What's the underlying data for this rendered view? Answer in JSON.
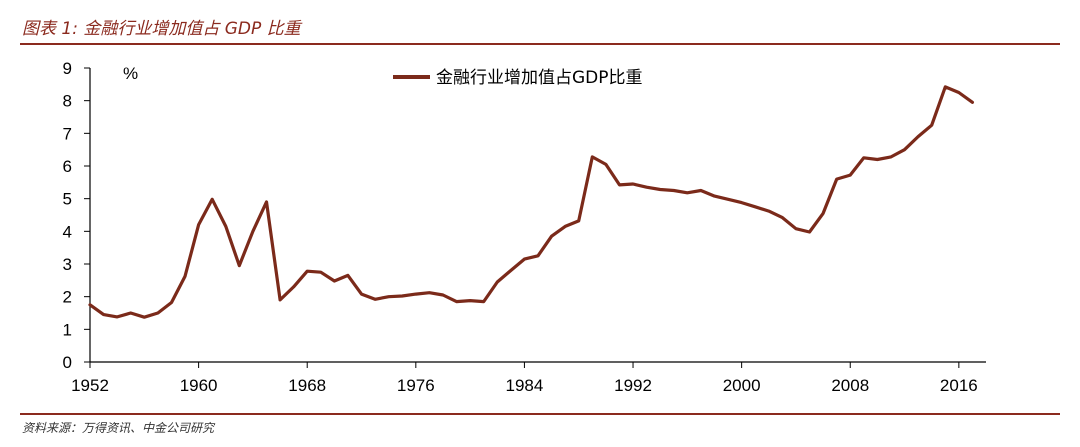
{
  "figure": {
    "title": "图表 1: 金融行业增加值占 GDP 比重",
    "source": "资料来源：万得资讯、中金公司研究"
  },
  "colors": {
    "accent": "#8B2A1E",
    "series": "#7B2A1A"
  },
  "chart_data": {
    "type": "line",
    "title": "",
    "xlabel": "",
    "ylabel": "%",
    "xlim": [
      1952,
      2018
    ],
    "ylim": [
      0,
      9
    ],
    "x_ticks": [
      1952,
      1960,
      1968,
      1976,
      1984,
      1992,
      2000,
      2008,
      2016
    ],
    "y_ticks": [
      0,
      1,
      2,
      3,
      4,
      5,
      6,
      7,
      8,
      9
    ],
    "grid": false,
    "legend_position": "top-center",
    "series": [
      {
        "name": "金融行业增加值占GDP比重",
        "x": [
          1952,
          1953,
          1954,
          1955,
          1956,
          1957,
          1958,
          1959,
          1960,
          1961,
          1962,
          1963,
          1964,
          1965,
          1966,
          1967,
          1968,
          1969,
          1970,
          1971,
          1972,
          1973,
          1974,
          1975,
          1976,
          1977,
          1978,
          1979,
          1980,
          1981,
          1982,
          1983,
          1984,
          1985,
          1986,
          1987,
          1988,
          1989,
          1990,
          1991,
          1992,
          1993,
          1994,
          1995,
          1996,
          1997,
          1998,
          1999,
          2000,
          2001,
          2002,
          2003,
          2004,
          2005,
          2006,
          2007,
          2008,
          2009,
          2010,
          2011,
          2012,
          2013,
          2014,
          2015,
          2016,
          2017
        ],
        "y": [
          1.75,
          1.45,
          1.38,
          1.5,
          1.37,
          1.5,
          1.82,
          2.62,
          4.2,
          4.98,
          4.15,
          2.95,
          4.0,
          4.9,
          1.9,
          2.3,
          2.78,
          2.75,
          2.48,
          2.65,
          2.08,
          1.92,
          2.0,
          2.02,
          2.08,
          2.12,
          2.05,
          1.85,
          1.88,
          1.85,
          2.45,
          2.8,
          3.15,
          3.25,
          3.85,
          4.15,
          4.32,
          6.28,
          6.05,
          5.42,
          5.45,
          5.35,
          5.28,
          5.25,
          5.18,
          5.25,
          5.08,
          4.98,
          4.88,
          4.75,
          4.62,
          4.42,
          4.08,
          3.98,
          4.55,
          5.6,
          5.72,
          6.25,
          6.2,
          6.28,
          6.5,
          6.9,
          7.25,
          8.42,
          8.25,
          7.95
        ]
      }
    ]
  }
}
